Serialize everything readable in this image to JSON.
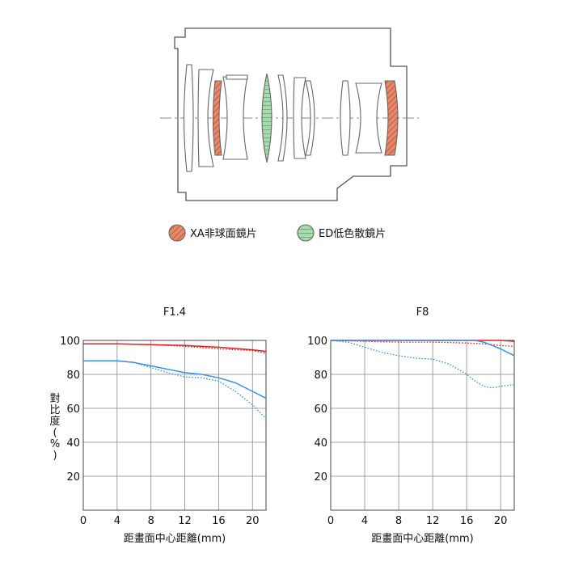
{
  "legend": {
    "xa_label": "XA非球面鏡片",
    "ed_label": "ED低色散鏡片",
    "xa_fill": "#e8886a",
    "ed_fill": "#a8d8b0"
  },
  "colors": {
    "sagittal_contrast": "#e41f1f",
    "meridional_fine": "#3a8fe0",
    "grid": "#888888",
    "lens_outline": "#555555"
  },
  "chart_data": [
    {
      "type": "line",
      "title": "F1.4",
      "xlabel": "距畫面中心距離(mm)",
      "ylabel": "對比度(%)",
      "xlim": [
        0,
        21.6
      ],
      "ylim": [
        0,
        100
      ],
      "x_ticks": [
        0,
        4,
        8,
        12,
        16,
        20
      ],
      "y_ticks": [
        20,
        40,
        60,
        80,
        100
      ],
      "grid": true,
      "series": [
        {
          "color": "red",
          "style": "solid",
          "x": [
            0,
            4,
            8,
            12,
            16,
            20,
            21.6
          ],
          "y": [
            98,
            98,
            97.5,
            97,
            96,
            94.5,
            93.5
          ]
        },
        {
          "color": "red",
          "style": "dotted",
          "x": [
            0,
            4,
            8,
            12,
            16,
            20,
            21.6
          ],
          "y": [
            98,
            98,
            97.5,
            96.5,
            95,
            94,
            92.5
          ]
        },
        {
          "color": "blue",
          "style": "solid",
          "x": [
            0,
            4,
            6,
            8,
            10,
            12,
            14,
            16,
            18,
            20,
            21.6
          ],
          "y": [
            88,
            88,
            87,
            85,
            83,
            81,
            80,
            78,
            75,
            70,
            66
          ]
        },
        {
          "color": "blue",
          "style": "dotted",
          "x": [
            0,
            4,
            6,
            8,
            10,
            12,
            14,
            16,
            18,
            20,
            21.6
          ],
          "y": [
            88,
            88,
            87,
            84,
            81,
            78.5,
            78,
            76,
            70,
            62,
            54
          ]
        }
      ]
    },
    {
      "type": "line",
      "title": "F8",
      "xlabel": "距畫面中心距離(mm)",
      "xlim": [
        0,
        21.6
      ],
      "ylim": [
        0,
        100
      ],
      "x_ticks": [
        0,
        4,
        8,
        12,
        16,
        20
      ],
      "y_ticks": [
        20,
        40,
        60,
        80,
        100
      ],
      "grid": true,
      "series": [
        {
          "color": "red",
          "style": "solid",
          "x": [
            0,
            4,
            8,
            12,
            16,
            18,
            20,
            21.6
          ],
          "y": [
            100,
            100,
            100,
            100,
            100,
            100,
            100,
            99.5
          ]
        },
        {
          "color": "red",
          "style": "dotted",
          "x": [
            0,
            4,
            8,
            12,
            16,
            18,
            20,
            21.6
          ],
          "y": [
            100,
            99.5,
            99,
            99,
            98.5,
            98,
            97,
            96.5
          ]
        },
        {
          "color": "blue",
          "style": "solid",
          "x": [
            0,
            4,
            8,
            12,
            16,
            17,
            18,
            19,
            20,
            21.6
          ],
          "y": [
            100,
            100,
            100,
            100,
            100,
            100,
            99,
            97,
            95,
            91
          ]
        },
        {
          "color": "blue",
          "style": "dotted",
          "x": [
            0,
            2,
            4,
            6,
            8,
            10,
            12,
            14,
            16,
            17,
            18,
            19,
            20,
            21.6
          ],
          "y": [
            100,
            99,
            96,
            93,
            91,
            89.5,
            89,
            86,
            80,
            76,
            73,
            72,
            73,
            74
          ]
        }
      ]
    }
  ]
}
